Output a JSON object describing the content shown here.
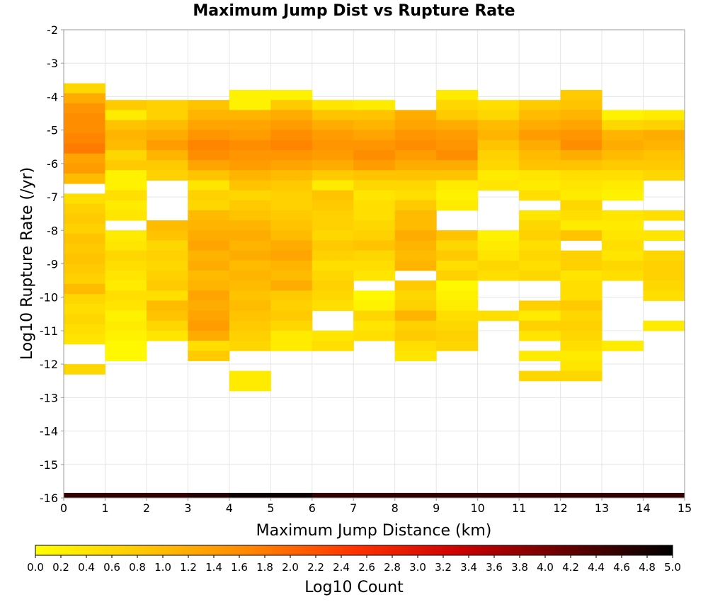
{
  "chart_data": {
    "type": "heatmap",
    "title": "Maximum Jump Dist vs Rupture Rate",
    "xlabel": "Maximum Jump Distance (km)",
    "ylabel": "Log10 Rupture Rate (/yr)",
    "xlim": [
      0,
      15
    ],
    "ylim": [
      -16,
      -2
    ],
    "x_ticks": [
      "0",
      "1",
      "2",
      "3",
      "4",
      "5",
      "6",
      "7",
      "8",
      "9",
      "10",
      "11",
      "12",
      "13",
      "14",
      "15"
    ],
    "y_ticks": [
      "-2",
      "-3",
      "-4",
      "-5",
      "-6",
      "-7",
      "-8",
      "-9",
      "-10",
      "-11",
      "-12",
      "-13",
      "-14",
      "-15",
      "-16"
    ],
    "grid": true,
    "x_bin_width": 1,
    "y_bin_height": 0.3,
    "colorbar": {
      "label": "Log10 Count",
      "min": 0.0,
      "max": 5.0,
      "ticks": [
        "0.0",
        "0.2",
        "0.4",
        "0.6",
        "0.8",
        "1.0",
        "1.2",
        "1.4",
        "1.6",
        "1.8",
        "2.0",
        "2.2",
        "2.4",
        "2.6",
        "2.8",
        "3.0",
        "3.2",
        "3.4",
        "3.6",
        "3.8",
        "4.0",
        "4.2",
        "4.4",
        "4.6",
        "4.8",
        "5.0"
      ],
      "colors": [
        "#ffff00",
        "#ffc800",
        "#ff8800",
        "#ff3300",
        "#cc0000",
        "#660000",
        "#000000"
      ]
    },
    "columns": [
      {
        "x": 0,
        "y_start": -3.6,
        "values": [
          0.6,
          1.2,
          1.5,
          1.6,
          1.6,
          1.7,
          1.8,
          1.3,
          1.4,
          1.0,
          null,
          0.5,
          0.7,
          0.8,
          0.7,
          0.9,
          0.8,
          0.9,
          0.8,
          0.7,
          1.0,
          0.6,
          0.5,
          0.6,
          0.5,
          0.4,
          null,
          null,
          0.6
        ]
      },
      {
        "x": 1,
        "y_start": -4.1,
        "values": [
          0.8,
          0.3,
          0.9,
          1.1,
          1.0,
          0.6,
          0.8,
          0.2,
          0.2,
          0.5,
          0.3,
          0.4,
          null,
          0.3,
          0.4,
          0.6,
          0.5,
          0.4,
          0.3,
          0.5,
          0.4,
          0.2,
          0.3,
          0.2,
          0.1,
          0.1
        ]
      },
      {
        "x": 2,
        "y_start": -4.1,
        "values": [
          0.7,
          0.7,
          1.0,
          1.2,
          1.4,
          1.1,
          0.8,
          0.7,
          null,
          null,
          null,
          null,
          1.0,
          0.9,
          0.6,
          0.7,
          0.6,
          0.7,
          0.8,
          0.5,
          1.0,
          0.9,
          0.6,
          0.4
        ]
      },
      {
        "x": 3,
        "y_start": -4.1,
        "values": [
          0.9,
          1.1,
          1.3,
          1.5,
          1.7,
          1.6,
          1.3,
          0.9,
          0.4,
          0.7,
          0.6,
          1.0,
          1.1,
          1.2,
          1.3,
          1.1,
          1.2,
          1.0,
          1.1,
          1.3,
          1.2,
          1.3,
          1.4,
          1.2,
          0.5,
          0.8
        ]
      },
      {
        "x": 4,
        "y_start": -3.8,
        "values": [
          0.2,
          0.2,
          1.1,
          1.3,
          1.4,
          1.6,
          1.5,
          1.4,
          1.1,
          0.9,
          0.6,
          0.8,
          0.9,
          1.1,
          1.2,
          1.1,
          1.2,
          1.0,
          1.1,
          1.0,
          0.9,
          1.0,
          0.9,
          0.8,
          0.7,
          0.6,
          null,
          null,
          0.3,
          0.3
        ]
      },
      {
        "x": 5,
        "y_start": -3.8,
        "values": [
          0.2,
          0.8,
          1.2,
          1.4,
          1.6,
          1.7,
          1.5,
          1.3,
          1.0,
          0.8,
          0.7,
          0.7,
          0.8,
          0.9,
          1.0,
          1.2,
          1.3,
          1.1,
          1.0,
          1.2,
          0.8,
          0.7,
          0.8,
          0.6,
          0.3,
          0.3
        ]
      },
      {
        "x": 6,
        "y_start": -4.1,
        "values": [
          0.4,
          0.9,
          1.2,
          1.4,
          1.5,
          1.4,
          1.2,
          0.8,
          0.3,
          0.9,
          0.8,
          0.7,
          0.7,
          0.6,
          0.8,
          0.7,
          0.5,
          0.6,
          0.7,
          0.6,
          0.5,
          null,
          null,
          0.4,
          0.5
        ]
      },
      {
        "x": 7,
        "y_start": -4.1,
        "values": [
          0.3,
          0.9,
          1.1,
          1.3,
          1.5,
          1.6,
          1.4,
          0.9,
          0.6,
          0.4,
          0.5,
          0.5,
          0.6,
          0.7,
          0.9,
          0.6,
          0.5,
          0.4,
          null,
          0.1,
          0.2,
          0.6,
          0.4,
          0.5
        ]
      },
      {
        "x": 8,
        "y_start": -4.4,
        "values": [
          1.2,
          1.3,
          1.5,
          1.6,
          1.4,
          1.2,
          0.9,
          0.6,
          0.5,
          0.8,
          1.0,
          1.0,
          1.2,
          1.1,
          1.0,
          1.1,
          null,
          0.8,
          0.6,
          0.7,
          1.1,
          0.7,
          0.8,
          0.5,
          0.4
        ]
      },
      {
        "x": 9,
        "y_start": -3.8,
        "values": [
          0.3,
          0.6,
          0.8,
          1.2,
          1.4,
          1.5,
          1.6,
          1.2,
          0.9,
          0.3,
          0.2,
          0.3,
          null,
          null,
          0.9,
          0.6,
          0.8,
          0.5,
          0.7,
          0.1,
          0.2,
          0.3,
          0.5,
          0.6,
          0.7,
          0.6
        ]
      },
      {
        "x": 10,
        "y_start": -4.1,
        "values": [
          0.5,
          0.6,
          1.0,
          1.1,
          0.9,
          0.7,
          0.6,
          0.3,
          0.4,
          null,
          null,
          null,
          null,
          0.2,
          0.3,
          0.4,
          0.6,
          0.5,
          null,
          null,
          null,
          0.5
        ]
      },
      {
        "x": 11,
        "y_start": -4.1,
        "values": [
          0.8,
          1.0,
          1.2,
          1.4,
          1.2,
          1.0,
          0.9,
          0.4,
          0.3,
          0.5,
          null,
          0.4,
          0.6,
          0.7,
          0.5,
          0.6,
          0.5,
          0.6,
          null,
          null,
          0.7,
          0.3,
          0.7,
          0.4,
          null,
          0.3,
          null,
          0.6
        ]
      },
      {
        "x": 12,
        "y_start": -3.8,
        "values": [
          0.8,
          0.9,
          1.1,
          1.3,
          1.5,
          1.6,
          1.2,
          0.9,
          0.5,
          0.4,
          0.3,
          0.6,
          0.5,
          0.3,
          0.9,
          null,
          0.7,
          0.7,
          0.4,
          0.5,
          0.5,
          0.8,
          0.6,
          0.7,
          0.6,
          0.5,
          0.3,
          0.4,
          0.6
        ]
      },
      {
        "x": 13,
        "y_start": -4.4,
        "values": [
          0.2,
          0.6,
          1.1,
          1.2,
          1.0,
          0.8,
          0.5,
          0.3,
          0.2,
          null,
          0.4,
          0.3,
          0.4,
          0.5,
          0.4,
          0.6,
          0.5,
          null,
          null,
          null,
          null,
          null,
          null,
          0.3
        ]
      },
      {
        "x": 14,
        "y_start": -4.4,
        "values": [
          0.3,
          0.7,
          1.2,
          1.1,
          0.9,
          0.8,
          0.6,
          null,
          null,
          null,
          0.5,
          null,
          0.4,
          null,
          0.6,
          0.7,
          0.7,
          0.6,
          0.5,
          null,
          null,
          0.3
        ]
      }
    ],
    "bottom_row": {
      "y": -16,
      "values": [
        4.6,
        4.6,
        4.6,
        4.7,
        4.9,
        4.9,
        4.6,
        4.6,
        4.6,
        4.6,
        4.6,
        4.6,
        4.6,
        4.6,
        4.6
      ]
    }
  }
}
